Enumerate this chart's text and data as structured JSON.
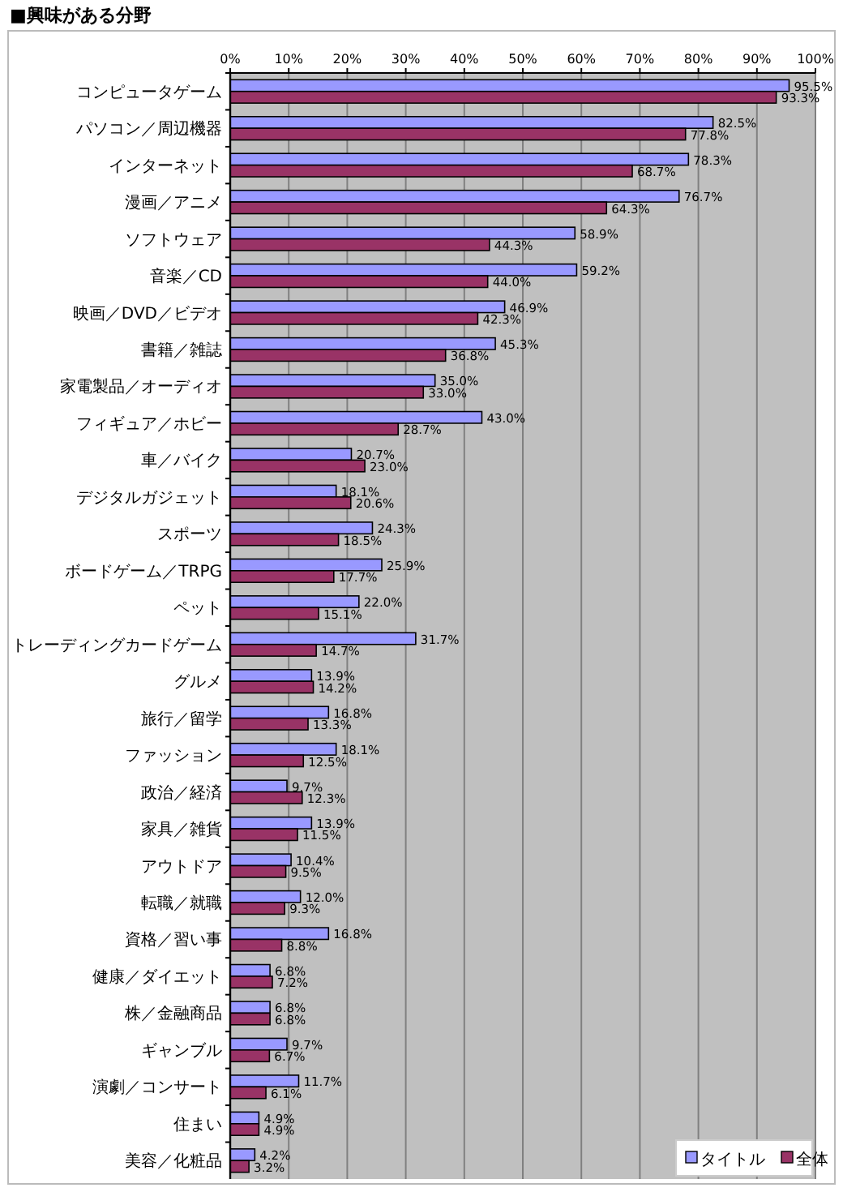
{
  "chart_data": {
    "type": "bar",
    "orientation": "horizontal",
    "title": "■興味がある分野",
    "categories": [
      "コンピュータゲーム",
      "パソコン／周辺機器",
      "インターネット",
      "漫画／アニメ",
      "ソフトウェア",
      "音楽／CD",
      "映画／DVD／ビデオ",
      "書籍／雑誌",
      "家電製品／オーディオ",
      "フィギュア／ホビー",
      "車／バイク",
      "デジタルガジェット",
      "スポーツ",
      "ボードゲーム／TRPG",
      "ペット",
      "トレーディングカードゲーム",
      "グルメ",
      "旅行／留学",
      "ファッション",
      "政治／経済",
      "家具／雑貨",
      "アウトドア",
      "転職／就職",
      "資格／習い事",
      "健康／ダイエット",
      "株／金融商品",
      "ギャンブル",
      "演劇／コンサート",
      "住まい",
      "美容／化粧品"
    ],
    "series": [
      {
        "name": "タイトル",
        "color": "#9999ff",
        "values": [
          95.5,
          82.5,
          78.3,
          76.7,
          58.9,
          59.2,
          46.9,
          45.3,
          35.0,
          43.0,
          20.7,
          18.1,
          24.3,
          25.9,
          22.0,
          31.7,
          13.9,
          16.8,
          18.1,
          9.7,
          13.9,
          10.4,
          12.0,
          16.8,
          6.8,
          6.8,
          9.7,
          11.7,
          4.9,
          4.2
        ],
        "value_labels": [
          "95.5%",
          "82.5%",
          "78.3%",
          "76.7%",
          "58.9%",
          "59.2%",
          "46.9%",
          "45.3%",
          "35.0%",
          "43.0%",
          "20.7%",
          "18.1%",
          "24.3%",
          "25.9%",
          "22.0%",
          "31.7%",
          "13.9%",
          "16.8%",
          "18.1%",
          "9.7%",
          "13.9%",
          "10.4%",
          "12.0%",
          "16.8%",
          "6.8%",
          "6.8%",
          "9.7%",
          "11.7%",
          "4.9%",
          "4.2%"
        ]
      },
      {
        "name": "全体",
        "color": "#993366",
        "values": [
          93.3,
          77.8,
          68.7,
          64.3,
          44.3,
          44.0,
          42.3,
          36.8,
          33.0,
          28.7,
          23.0,
          20.6,
          18.5,
          17.7,
          15.1,
          14.7,
          14.2,
          13.3,
          12.5,
          12.3,
          11.5,
          9.5,
          9.3,
          8.8,
          7.2,
          6.8,
          6.7,
          6.1,
          4.9,
          3.2
        ],
        "value_labels": [
          "93.3%",
          "77.8%",
          "68.7%",
          "64.3%",
          "44.3%",
          "44.0%",
          "42.3%",
          "36.8%",
          "33.0%",
          "28.7%",
          "23.0%",
          "20.6%",
          "18.5%",
          "17.7%",
          "15.1%",
          "14.7%",
          "14.2%",
          "13.3%",
          "12.5%",
          "12.3%",
          "11.5%",
          "9.5%",
          "9.3%",
          "8.8%",
          "7.2%",
          "6.8%",
          "6.7%",
          "6.1%",
          "4.9%",
          "3.2%"
        ]
      }
    ],
    "xlim": [
      0,
      100
    ],
    "xticks": [
      {
        "value": 0,
        "label": "0%"
      },
      {
        "value": 10,
        "label": "10%"
      },
      {
        "value": 20,
        "label": "20%"
      },
      {
        "value": 30,
        "label": "30%"
      },
      {
        "value": 40,
        "label": "40%"
      },
      {
        "value": 50,
        "label": "50%"
      },
      {
        "value": 60,
        "label": "60%"
      },
      {
        "value": 70,
        "label": "70%"
      },
      {
        "value": 80,
        "label": "80%"
      },
      {
        "value": 90,
        "label": "90%"
      },
      {
        "value": 100,
        "label": "100%"
      }
    ],
    "grid": "x",
    "legend": "bottom right"
  }
}
